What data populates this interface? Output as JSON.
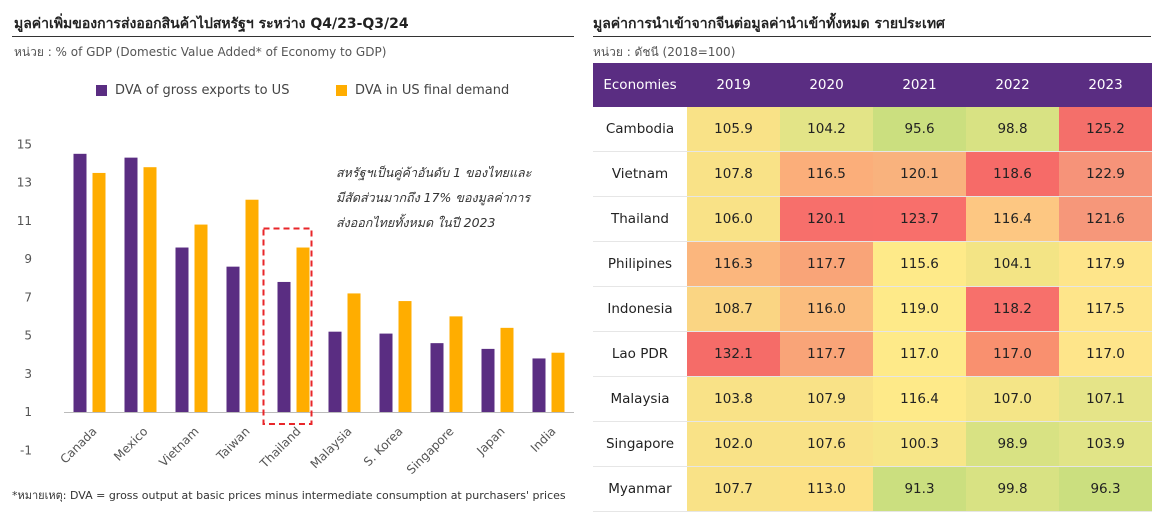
{
  "left": {
    "title": "มูลค่าเพิ่มของการส่งออกสินค้าไปสหรัฐฯ ระหว่าง Q4/23-Q3/24",
    "unit": "หน่วย : % of GDP (Domestic Value Added* of Economy to GDP)",
    "annotation": [
      "สหรัฐฯเป็นคู่ค้าอันดับ  1 ของไทยและ",
      "มีสัดส่วนมากถึง  17% ของมูลค่าการ",
      "ส่งออกไทยทั้งหมด ในปี 2023"
    ],
    "footnote": "*หมายเหตุ: DVA = gross output at basic prices minus intermediate consumption at purchasers' prices",
    "highlight_category": "Thailand"
  },
  "right": {
    "title": "มูลค่าการนำเข้าจากจีนต่อมูลค่านำเข้าทั้งหมด รายประเทศ",
    "unit": "หน่วย : ดัชนี (2018=100)",
    "header_color": "#5a2d82"
  },
  "chart_data": [
    {
      "type": "bar",
      "categories": [
        "Canada",
        "Mexico",
        "Vietnam",
        "Taiwan",
        "Thailand",
        "Malaysia",
        "S. Korea",
        "Singapore",
        "Japan",
        "India"
      ],
      "series": [
        {
          "name": "DVA of gross exports to US",
          "color": "#5a2d82",
          "values": [
            14.5,
            14.3,
            9.6,
            8.6,
            7.8,
            5.2,
            5.1,
            4.6,
            4.3,
            3.8
          ]
        },
        {
          "name": "DVA in US final demand",
          "color": "#ffad00",
          "values": [
            13.5,
            13.8,
            10.8,
            12.1,
            9.6,
            7.2,
            6.8,
            6.0,
            5.4,
            4.1
          ]
        }
      ],
      "yticks": [
        15,
        13,
        11,
        9,
        7,
        5,
        3,
        1,
        -1
      ],
      "ylim": [
        -1,
        15.5
      ],
      "legend": "top"
    },
    {
      "type": "heatmap",
      "corner": "Economies",
      "years": [
        "2019",
        "2020",
        "2021",
        "2022",
        "2023"
      ],
      "rows": [
        {
          "name": "Cambodia",
          "values": [
            "105.9",
            "104.2",
            "95.6",
            "98.8",
            "125.2"
          ]
        },
        {
          "name": "Vietnam",
          "values": [
            "107.8",
            "116.5",
            "120.1",
            "118.6",
            "122.9"
          ]
        },
        {
          "name": "Thailand",
          "values": [
            "106.0",
            "120.1",
            "123.7",
            "116.4",
            "121.6"
          ]
        },
        {
          "name": "Philipines",
          "values": [
            "116.3",
            "117.7",
            "115.6",
            "104.1",
            "117.9"
          ]
        },
        {
          "name": "Indonesia",
          "values": [
            "108.7",
            "116.0",
            "119.0",
            "118.2",
            "117.5"
          ]
        },
        {
          "name": "Lao PDR",
          "values": [
            "132.1",
            "117.7",
            "117.0",
            "117.0",
            "117.0"
          ]
        },
        {
          "name": "Malaysia",
          "values": [
            "103.8",
            "107.9",
            "116.4",
            "107.0",
            "107.1"
          ]
        },
        {
          "name": "Singapore",
          "values": [
            "102.0",
            "107.6",
            "100.3",
            "98.9",
            "103.9"
          ]
        },
        {
          "name": "Myanmar",
          "values": [
            "107.7",
            "113.0",
            "91.3",
            "99.8",
            "96.3"
          ]
        }
      ],
      "cell_colors": [
        [
          "#f9e287",
          "#e3e487",
          "#cbdf7f",
          "#d8e283",
          "#f46f6a"
        ],
        [
          "#f9e287",
          "#fbae7a",
          "#f9b27d",
          "#f66b68",
          "#f69379"
        ],
        [
          "#f9e287",
          "#f76f6b",
          "#f86f6b",
          "#fdc782",
          "#f6977a"
        ],
        [
          "#fbb67d",
          "#f9a478",
          "#feea89",
          "#f3e485",
          "#fee58a"
        ],
        [
          "#fad583",
          "#fbbd7e",
          "#feea89",
          "#f7706b",
          "#fee58a"
        ],
        [
          "#f56c68",
          "#f9a478",
          "#feea89",
          "#f9906f",
          "#fee58a"
        ],
        [
          "#f9e287",
          "#f9e287",
          "#feea89",
          "#f4e587",
          "#e5e488"
        ],
        [
          "#f9e287",
          "#f9e287",
          "#f7e688",
          "#d8e283",
          "#e1e487"
        ],
        [
          "#f9e287",
          "#fce185",
          "#cbdf7f",
          "#d8e283",
          "#cbdf7f"
        ]
      ]
    }
  ]
}
